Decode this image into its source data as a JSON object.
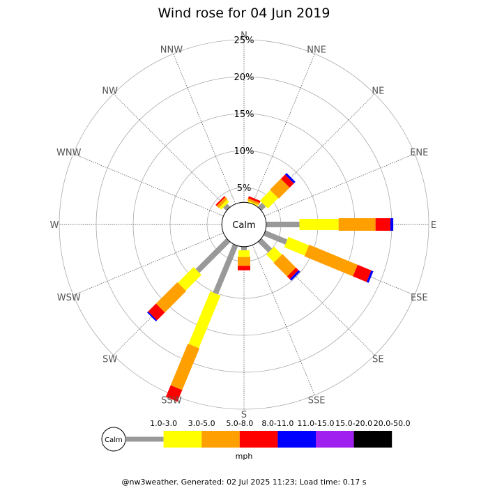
{
  "footer": "@nw3weather. Generated: 02 Jul 2025 11:23; Load time: 0.17 s",
  "chart_data": {
    "type": "wind-rose",
    "title": "Wind rose for 04 Jun 2019",
    "directions": [
      "N",
      "NNE",
      "NE",
      "ENE",
      "E",
      "ESE",
      "SE",
      "SSE",
      "S",
      "SSW",
      "SW",
      "WSW",
      "W",
      "WNW",
      "NW",
      "NNW"
    ],
    "radial_ticks": [
      "5%",
      "10%",
      "15%",
      "20%",
      "25%"
    ],
    "radial_max": 25,
    "center_label": "Calm",
    "calm_percent": 3,
    "speed_bins": [
      {
        "label": "1.0-3.0",
        "color": "#999999"
      },
      {
        "label": "3.0-5.0",
        "color": "#ffff00"
      },
      {
        "label": "5.0-8.0",
        "color": "#ff9f00"
      },
      {
        "label": "8.0-11.0",
        "color": "#ff0000"
      },
      {
        "label": "11.0-15.0",
        "color": "#0000ff"
      },
      {
        "label": "15.0-20.0",
        "color": "#a020f0"
      },
      {
        "label": "20.0-50.0",
        "color": "#000000"
      }
    ],
    "legend_unit": "mph",
    "series": [
      {
        "direction": "N",
        "cumulative": [
          3.0,
          3.0,
          3.0,
          3.0,
          3.0
        ]
      },
      {
        "direction": "NNE",
        "cumulative": [
          3.0,
          3.2,
          3.5,
          3.8,
          3.8
        ]
      },
      {
        "direction": "NE",
        "cumulative": [
          3.8,
          5.8,
          7.9,
          8.7,
          9.0
        ]
      },
      {
        "direction": "ENE",
        "cumulative": [
          3.0,
          3.0,
          3.0,
          3.0,
          3.0
        ]
      },
      {
        "direction": "E",
        "cumulative": [
          7.5,
          12.8,
          17.8,
          19.8,
          20.2
        ]
      },
      {
        "direction": "ESE",
        "cumulative": [
          6.2,
          9.2,
          16.3,
          18.3,
          18.6
        ]
      },
      {
        "direction": "SE",
        "cumulative": [
          5.0,
          6.5,
          9.1,
          9.6,
          9.9
        ]
      },
      {
        "direction": "SSE",
        "cumulative": [
          3.0,
          3.0,
          3.0,
          3.0,
          3.0
        ]
      },
      {
        "direction": "S",
        "cumulative": [
          3.5,
          4.4,
          5.6,
          6.2,
          6.2
        ]
      },
      {
        "direction": "SSW",
        "cumulative": [
          10.1,
          17.8,
          23.9,
          25.6,
          25.6
        ]
      },
      {
        "direction": "SW",
        "cumulative": [
          8.9,
          11.9,
          16.0,
          17.5,
          17.7
        ]
      },
      {
        "direction": "WSW",
        "cumulative": [
          3.0,
          3.0,
          3.0,
          3.0,
          3.0
        ]
      },
      {
        "direction": "W",
        "cumulative": [
          3.0,
          3.0,
          3.0,
          3.0,
          3.0
        ]
      },
      {
        "direction": "WNW",
        "cumulative": [
          3.0,
          3.0,
          3.0,
          3.0,
          3.0
        ]
      },
      {
        "direction": "NW",
        "cumulative": [
          3.6,
          4.0,
          4.4,
          4.6,
          4.6
        ]
      },
      {
        "direction": "NNW",
        "cumulative": [
          3.0,
          3.0,
          3.0,
          3.0,
          3.0
        ]
      }
    ]
  }
}
